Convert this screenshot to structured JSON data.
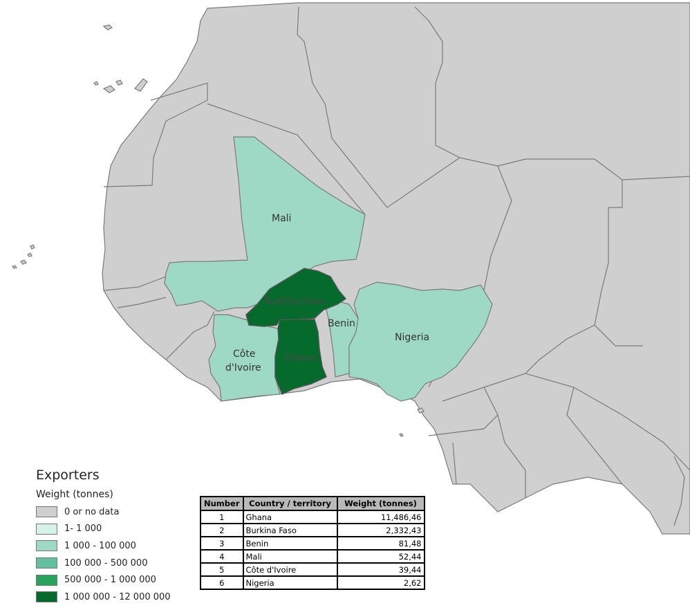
{
  "map": {
    "labels": {
      "mali": "Mali",
      "burkina": "Burkina Faso",
      "benin": "Benin",
      "nigeria": "Nigeria",
      "cote_line1": "Côte",
      "cote_line2": "d'Ivoire",
      "ghana": "Ghana"
    },
    "colors": {
      "land": "#cfcfcf",
      "border": "#7a7a7a",
      "sea": "#ffffff",
      "class_1000_100000": "#9ed9c5",
      "class_1000000_12000000": "#046b2c"
    }
  },
  "legend": {
    "title": "Exporters",
    "subtitle": "Weight (tonnes)",
    "items": [
      {
        "label": "0 or no data",
        "color": "#cfcfcf"
      },
      {
        "label": "1- 1 000",
        "color": "#d6f1e8"
      },
      {
        "label": "1 000 - 100 000",
        "color": "#9ed9c5"
      },
      {
        "label": "100 000 - 500 000",
        "color": "#62c09f"
      },
      {
        "label": "500 000 - 1 000 000",
        "color": "#28a45f"
      },
      {
        "label": "1 000 000 - 12 000 000",
        "color": "#046b2c"
      }
    ]
  },
  "table": {
    "headers": [
      "Number",
      "Country / territory",
      "Weight (tonnes)"
    ],
    "rows": [
      {
        "number": "1",
        "country": "Ghana",
        "weight": "11,486,46"
      },
      {
        "number": "2",
        "country": "Burkina Faso",
        "weight": "2,332,43"
      },
      {
        "number": "3",
        "country": "Benin",
        "weight": "81,48"
      },
      {
        "number": "4",
        "country": "Mali",
        "weight": "52,44"
      },
      {
        "number": "5",
        "country": "Côte d'Ivoire",
        "weight": "39,44"
      },
      {
        "number": "6",
        "country": "Nigeria",
        "weight": "2,62"
      }
    ]
  }
}
